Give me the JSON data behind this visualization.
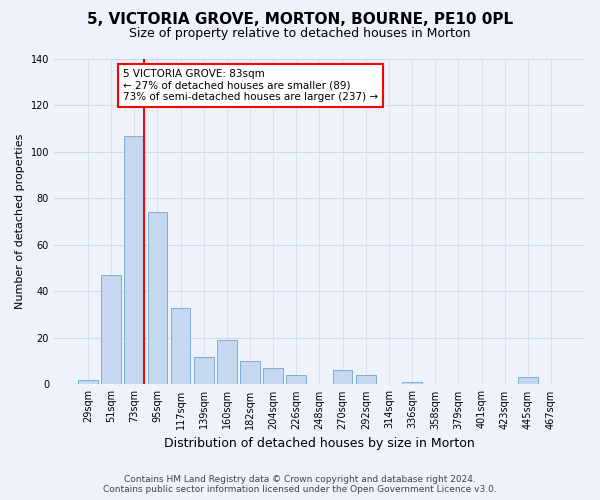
{
  "title": "5, VICTORIA GROVE, MORTON, BOURNE, PE10 0PL",
  "subtitle": "Size of property relative to detached houses in Morton",
  "xlabel": "Distribution of detached houses by size in Morton",
  "ylabel": "Number of detached properties",
  "bin_labels": [
    "29sqm",
    "51sqm",
    "73sqm",
    "95sqm",
    "117sqm",
    "139sqm",
    "160sqm",
    "182sqm",
    "204sqm",
    "226sqm",
    "248sqm",
    "270sqm",
    "292sqm",
    "314sqm",
    "336sqm",
    "358sqm",
    "379sqm",
    "401sqm",
    "423sqm",
    "445sqm",
    "467sqm"
  ],
  "bar_values": [
    2,
    47,
    107,
    74,
    33,
    12,
    19,
    10,
    7,
    4,
    0,
    6,
    4,
    0,
    1,
    0,
    0,
    0,
    0,
    3,
    0
  ],
  "bar_color": "#c5d8f0",
  "bar_edge_color": "#7fafd4",
  "vline_color": "red",
  "vline_x_index": 2,
  "ylim": [
    0,
    140
  ],
  "yticks": [
    0,
    20,
    40,
    60,
    80,
    100,
    120,
    140
  ],
  "annotation_text": "5 VICTORIA GROVE: 83sqm\n← 27% of detached houses are smaller (89)\n73% of semi-detached houses are larger (237) →",
  "annotation_box_color": "white",
  "annotation_box_edge": "red",
  "footer_line1": "Contains HM Land Registry data © Crown copyright and database right 2024.",
  "footer_line2": "Contains public sector information licensed under the Open Government Licence v3.0.",
  "background_color": "#edf2fb",
  "grid_color": "#d0daea",
  "title_fontsize": 11,
  "subtitle_fontsize": 9,
  "xlabel_fontsize": 9,
  "ylabel_fontsize": 8,
  "tick_fontsize": 7,
  "footer_fontsize": 6.5,
  "annot_fontsize": 7.5
}
